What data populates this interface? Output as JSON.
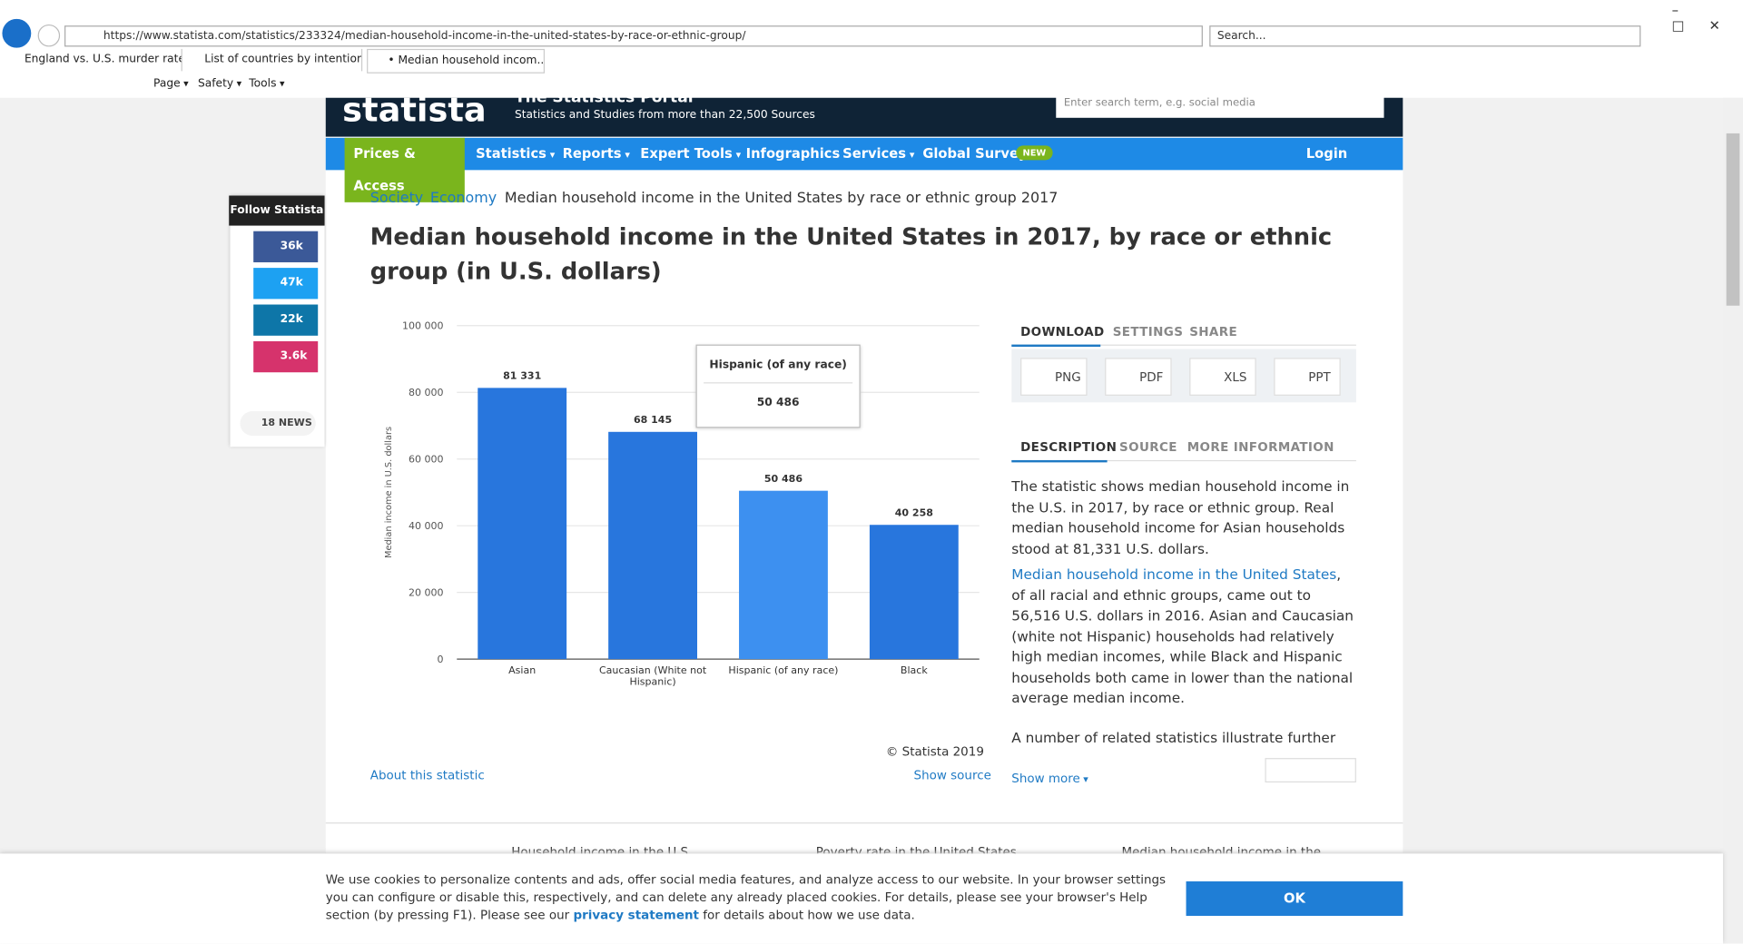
{
  "browser": {
    "url": "https://www.statista.com/statistics/233324/median-household-income-in-the-united-states-by-race-or-ethnic-group/",
    "search": "Search...",
    "tabs": [
      "England vs. U.S. murder rate | ...",
      "List of countries by intentional ...",
      "• Median household incom..."
    ],
    "toolbar": [
      "Page",
      "Safety",
      "Tools"
    ]
  },
  "site": {
    "logo": "statista",
    "tagline": "The Statistics Portal",
    "subtitle": "Statistics and Studies from more than 22,500 Sources",
    "search_placeholder": "Enter search term, e.g. social media",
    "nav": [
      "Prices & Access",
      "Statistics",
      "Reports",
      "Expert Tools",
      "Infographics",
      "Services",
      "Global Survey"
    ],
    "nav_badge": "NEW",
    "login": "Login"
  },
  "social": {
    "title": "Follow Statista",
    "counts": [
      "36k",
      "47k",
      "22k",
      "3.6k"
    ],
    "news": "18 NEWS"
  },
  "breadcrumb": [
    "Society",
    "Economy",
    "Median household income in the United States by race or ethnic group 2017"
  ],
  "page_title": "Median household income in the United States in 2017, by race or ethnic group (in U.S. dollars)",
  "chart_data": {
    "type": "bar",
    "y_label": "Median income in U.S. dollars",
    "categories": [
      "Asian",
      "Caucasian (White not Hispanic)",
      "Hispanic (of any race)",
      "Black"
    ],
    "values": [
      81331,
      68145,
      50486,
      40258
    ],
    "value_labels": [
      "81 331",
      "68 145",
      "50 486",
      "40 258"
    ],
    "colors": [
      "#2876dd",
      "#2876dd",
      "#3d90f0",
      "#2876dd"
    ],
    "ylim": [
      0,
      100000
    ],
    "yticks": [
      0,
      {
        "value": 20000,
        "label": "20 000"
      },
      {
        "value": 40000,
        "label": "40 000"
      },
      {
        "value": 60000,
        "label": "60 000"
      },
      {
        "value": 80000,
        "label": "80 000"
      },
      {
        "value": 100000,
        "label": "100 000"
      }
    ],
    "grid": true
  },
  "chart_footer": {
    "copyright": "© Statista 2019",
    "about": "About this statistic",
    "show_source": "Show source"
  },
  "download": {
    "tabs": [
      "DOWNLOAD",
      "SETTINGS",
      "SHARE"
    ],
    "formats": [
      "PNG",
      "PDF",
      "XLS",
      "PPT"
    ]
  },
  "info": {
    "tabs": [
      "DESCRIPTION",
      "SOURCE",
      "MORE INFORMATION"
    ],
    "paragraph_1": "The statistic shows median household income in the U.S. in 2017, by race or ethnic group. Real median household income for Asian households stood at 81,331 U.S. dollars.",
    "link": "Median household income in the United States",
    "paragraph_2": ", of all racial and ethnic groups, came out to 56,516 U.S. dollars in 2016. Asian and Caucasian (white not Hispanic) households had relatively high median incomes, while Black and Hispanic households both came in lower than the national average median income.",
    "paragraph_3": "A number of related statistics illustrate further the",
    "show_more": "Show more"
  },
  "related": [
    "Household income in the U.S.",
    "Poverty rate in the United States",
    "Median household income in the"
  ],
  "cookie": {
    "text": "We use cookies to personalize contents and ads, offer social media features, and analyze access to our website. In your browser settings you can configure or disable this, respectively, and can delete any already placed cookies. For details, please see your browser's Help section (by pressing F1). Please see our",
    "link": "privacy statement",
    "text_end": "for details about how we use data.",
    "button": "OK"
  }
}
